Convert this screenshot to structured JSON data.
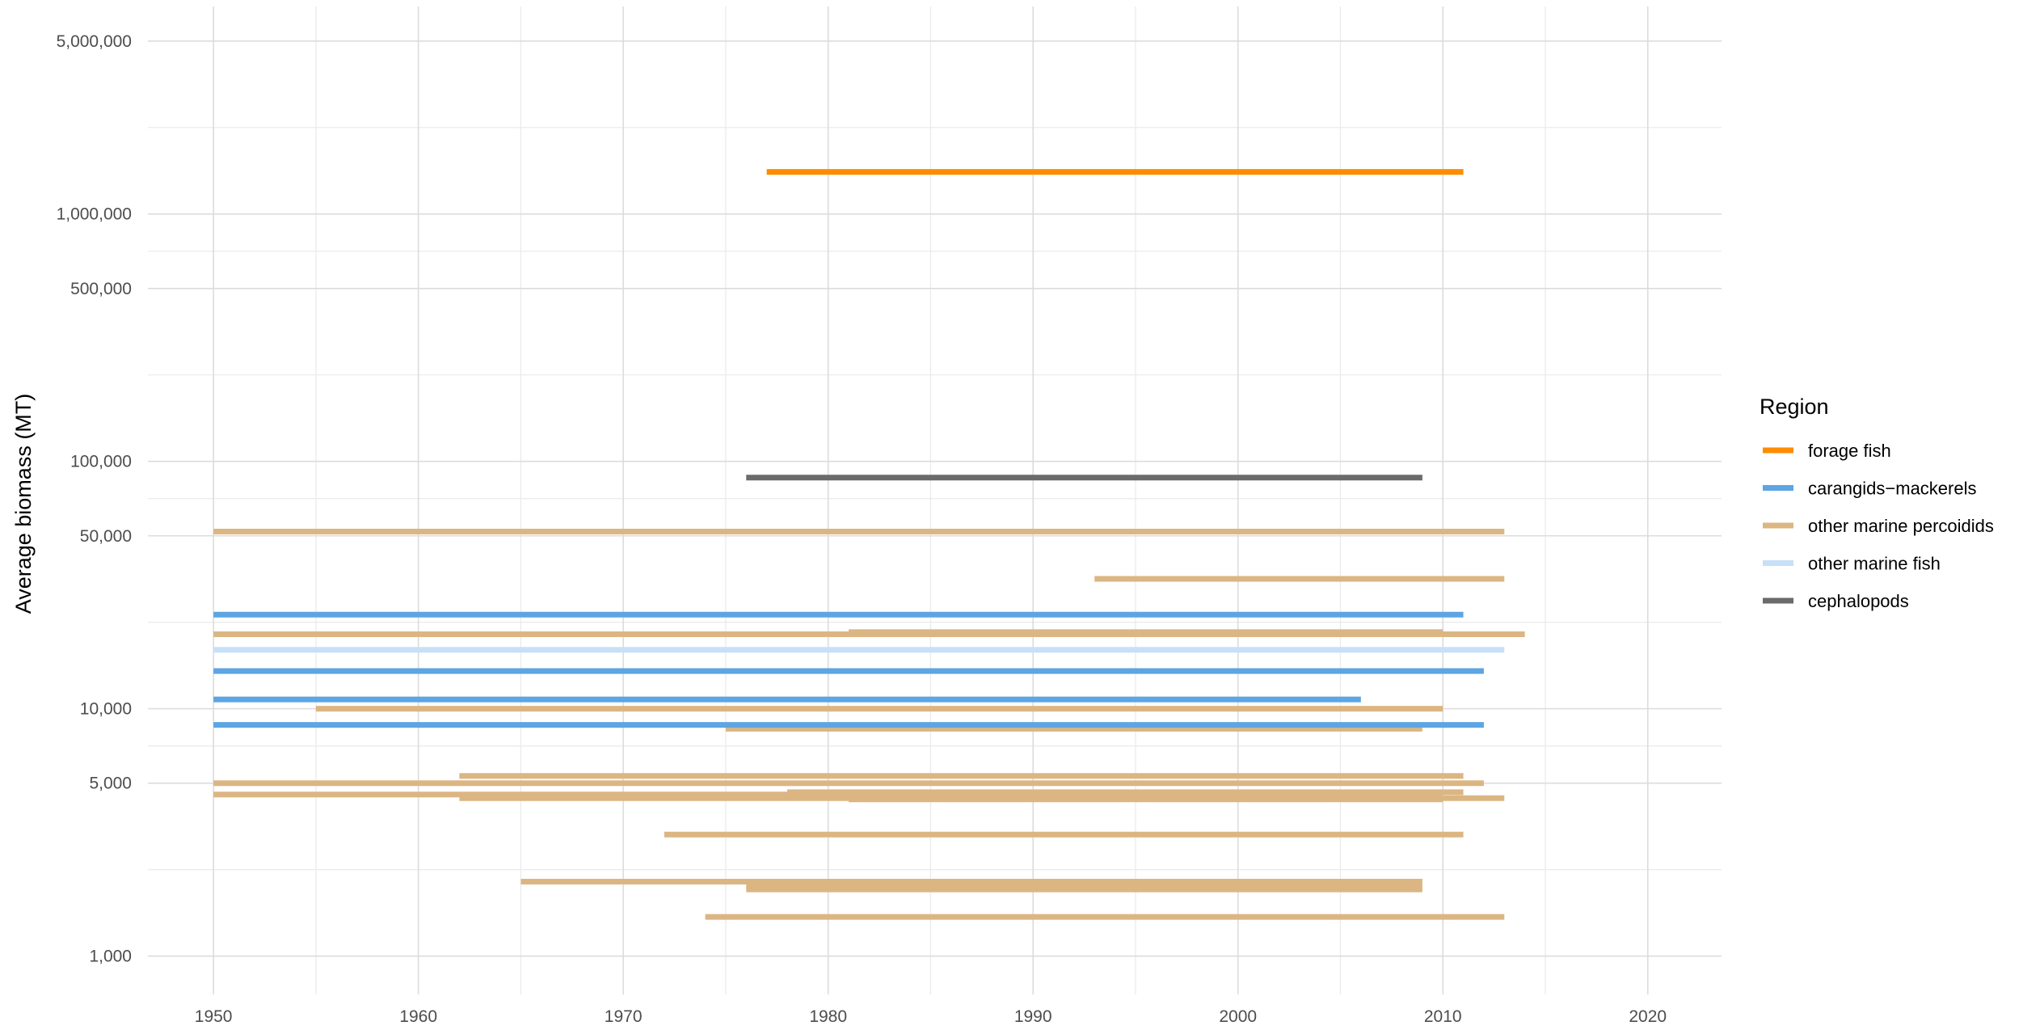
{
  "chart_data": {
    "type": "line",
    "title": "",
    "xlabel": "",
    "ylabel": "Average biomass (MT)",
    "y_scale": "log10",
    "xlim": [
      1946.8,
      2023.6
    ],
    "ylim": [
      700,
      6900000
    ],
    "x_ticks": [
      1950,
      1960,
      1970,
      1980,
      1990,
      2000,
      2010,
      2020
    ],
    "x_tick_labels": [
      "1950",
      "1960",
      "1970",
      "1980",
      "1990",
      "2000",
      "2010",
      "2020"
    ],
    "y_ticks": [
      1000,
      5000,
      10000,
      50000,
      100000,
      500000,
      1000000,
      5000000
    ],
    "y_tick_labels": [
      "1,000",
      "5,000",
      "10,000",
      "50,000",
      "100,000",
      "500,000",
      "1,000,000",
      "5,000,000"
    ],
    "grid": true,
    "legend": {
      "title": "Region",
      "position": "right",
      "items": [
        {
          "label": "forage fish",
          "color": "#FF8C00"
        },
        {
          "label": "carangids−mackerels",
          "color": "#5DA5E3"
        },
        {
          "label": "other marine percoidids",
          "color": "#DBB683"
        },
        {
          "label": "other marine fish",
          "color": "#C6E0F8"
        },
        {
          "label": "cephalopods",
          "color": "#6B6B6B"
        }
      ]
    },
    "segments": [
      {
        "group": "other marine percoidids",
        "x_start": 1950,
        "x_end": 2013,
        "y": 52000
      },
      {
        "group": "other marine percoidids",
        "x_start": 1993,
        "x_end": 2013,
        "y": 33500
      },
      {
        "group": "other marine percoidids",
        "x_start": 1950,
        "x_end": 2014,
        "y": 20000
      },
      {
        "group": "other marine percoidids",
        "x_start": 1981,
        "x_end": 2010,
        "y": 20400
      },
      {
        "group": "other marine percoidids",
        "x_start": 1955,
        "x_end": 2010,
        "y": 10000
      },
      {
        "group": "other marine percoidids",
        "x_start": 1975,
        "x_end": 2009,
        "y": 8300
      },
      {
        "group": "other marine percoidids",
        "x_start": 1962,
        "x_end": 2011,
        "y": 5350
      },
      {
        "group": "other marine percoidids",
        "x_start": 1950,
        "x_end": 2012,
        "y": 5000
      },
      {
        "group": "other marine percoidids",
        "x_start": 1950,
        "x_end": 2010,
        "y": 4500
      },
      {
        "group": "other marine percoidids",
        "x_start": 1978,
        "x_end": 2011,
        "y": 4600
      },
      {
        "group": "other marine percoidids",
        "x_start": 1962,
        "x_end": 2013,
        "y": 4350
      },
      {
        "group": "other marine percoidids",
        "x_start": 1981,
        "x_end": 2010,
        "y": 4300
      },
      {
        "group": "other marine percoidids",
        "x_start": 1972,
        "x_end": 2011,
        "y": 3100
      },
      {
        "group": "other marine percoidids",
        "x_start": 1965,
        "x_end": 2009,
        "y": 2000
      },
      {
        "group": "other marine percoidids",
        "x_start": 1976,
        "x_end": 2009,
        "y": 1920
      },
      {
        "group": "other marine percoidids",
        "x_start": 1976,
        "x_end": 2009,
        "y": 1860
      },
      {
        "group": "other marine percoidids",
        "x_start": 1974,
        "x_end": 2013,
        "y": 1440
      },
      {
        "group": "other marine fish",
        "x_start": 1950,
        "x_end": 2013,
        "y": 17300
      },
      {
        "group": "carangids−mackerels",
        "x_start": 1950,
        "x_end": 2011,
        "y": 24000
      },
      {
        "group": "carangids−mackerels",
        "x_start": 1950,
        "x_end": 2012,
        "y": 14200
      },
      {
        "group": "carangids−mackerels",
        "x_start": 1950,
        "x_end": 2006,
        "y": 10900
      },
      {
        "group": "carangids−mackerels",
        "x_start": 1950,
        "x_end": 2012,
        "y": 8600
      },
      {
        "group": "cephalopods",
        "x_start": 1976,
        "x_end": 2009,
        "y": 86000
      },
      {
        "group": "forage fish",
        "x_start": 1977,
        "x_end": 2011,
        "y": 1480000
      }
    ]
  }
}
